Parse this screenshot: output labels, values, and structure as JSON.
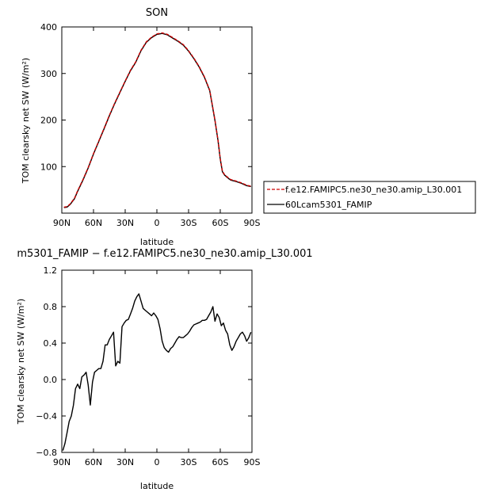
{
  "chart_data": [
    {
      "type": "line",
      "title": "SON",
      "xlabel": "latitude",
      "ylabel": "TOM clearsky net SW (W/m²)",
      "xlim": [
        90,
        -90
      ],
      "ylim": [
        0,
        400
      ],
      "x_ticks": [
        90,
        60,
        30,
        0,
        -30,
        -60,
        -90
      ],
      "x_tick_labels": [
        "90N",
        "60N",
        "30N",
        "0",
        "30S",
        "60S",
        "90S"
      ],
      "y_ticks": [
        100,
        200,
        300,
        400
      ],
      "y_tick_labels": [
        "100",
        "200",
        "300",
        "400"
      ],
      "legend_position": "right",
      "series": [
        {
          "name": "f.e12.FAMIPC5.ne30_ne30.amip_L30.001",
          "color": "#cc0000",
          "dash": "dashed",
          "x": [
            88,
            85,
            82,
            78,
            75,
            70,
            65,
            60,
            55,
            50,
            45,
            40,
            35,
            30,
            25,
            20,
            15,
            10,
            5,
            0,
            -5,
            -10,
            -15,
            -20,
            -25,
            -30,
            -35,
            -40,
            -45,
            -50,
            -55,
            -58,
            -60,
            -62,
            -64,
            -66,
            -68,
            -70,
            -75,
            -80,
            -85,
            -89
          ],
          "y": [
            13,
            14,
            20,
            32,
            48,
            72,
            98,
            128,
            155,
            182,
            210,
            236,
            260,
            284,
            307,
            325,
            350,
            368,
            378,
            385,
            387,
            384,
            377,
            370,
            362,
            349,
            333,
            315,
            293,
            264,
            200,
            155,
            117,
            90,
            83,
            79,
            75,
            72,
            69,
            65,
            60,
            58
          ]
        },
        {
          "name": "60Lcam5301_FAMIP",
          "color": "#000000",
          "dash": "solid",
          "x": [
            88,
            85,
            82,
            78,
            75,
            70,
            65,
            60,
            55,
            50,
            45,
            40,
            35,
            30,
            25,
            20,
            15,
            10,
            5,
            0,
            -5,
            -10,
            -15,
            -20,
            -25,
            -30,
            -35,
            -40,
            -45,
            -50,
            -55,
            -58,
            -60,
            -62,
            -64,
            -66,
            -68,
            -70,
            -75,
            -80,
            -85,
            -89
          ],
          "y": [
            12,
            13,
            19,
            31,
            47,
            71,
            97,
            127,
            154,
            181,
            209,
            235,
            259,
            283,
            306,
            324,
            349,
            367,
            377,
            384,
            386,
            383,
            376,
            369,
            361,
            348,
            332,
            314,
            292,
            263,
            199,
            154,
            116,
            89,
            82,
            78,
            74,
            71,
            68,
            64,
            59,
            57
          ]
        }
      ]
    },
    {
      "type": "line",
      "title": "m5301_FAMIP − f.e12.FAMIPC5.ne30_ne30.amip_L30.001",
      "xlabel": "latitude",
      "ylabel": "TOM clearsky net SW (W/m²)",
      "xlim": [
        90,
        -90
      ],
      "ylim": [
        -0.8,
        1.2
      ],
      "x_ticks": [
        90,
        60,
        30,
        0,
        -30,
        -60,
        -90
      ],
      "x_tick_labels": [
        "90N",
        "60N",
        "30N",
        "0",
        "30S",
        "60S",
        "90S"
      ],
      "y_ticks": [
        -0.8,
        -0.4,
        0.0,
        0.4,
        0.8,
        1.2
      ],
      "y_tick_labels": [
        "−0.8",
        "−0.4",
        "0.0",
        "0.4",
        "0.8",
        "1.2"
      ],
      "series": [
        {
          "color": "#000000",
          "x": [
            89,
            87,
            85,
            83,
            81,
            79,
            77,
            75,
            73,
            71,
            69,
            67,
            65,
            63,
            61,
            59,
            57,
            55,
            53,
            51,
            49,
            47,
            45,
            43,
            41,
            39,
            37,
            35,
            33,
            31,
            29,
            27,
            25,
            23,
            21,
            19,
            17,
            15,
            13,
            11,
            9,
            7,
            5,
            3,
            1,
            -1,
            -3,
            -5,
            -7,
            -9,
            -11,
            -13,
            -15,
            -17,
            -19,
            -21,
            -23,
            -25,
            -27,
            -29,
            -31,
            -33,
            -35,
            -37,
            -39,
            -41,
            -43,
            -45,
            -47,
            -49,
            -51,
            -53,
            -55,
            -57,
            -59,
            -61,
            -63,
            -65,
            -67,
            -69,
            -71,
            -73,
            -75,
            -77,
            -79,
            -81,
            -83,
            -85,
            -87,
            -89
          ],
          "y": [
            -0.78,
            -0.7,
            -0.58,
            -0.46,
            -0.4,
            -0.28,
            -0.1,
            -0.05,
            -0.1,
            0.03,
            0.05,
            0.08,
            -0.06,
            -0.28,
            -0.03,
            0.08,
            0.1,
            0.12,
            0.12,
            0.2,
            0.38,
            0.38,
            0.44,
            0.48,
            0.52,
            0.15,
            0.2,
            0.18,
            0.58,
            0.62,
            0.65,
            0.66,
            0.72,
            0.78,
            0.86,
            0.91,
            0.94,
            0.86,
            0.78,
            0.76,
            0.74,
            0.72,
            0.7,
            0.73,
            0.7,
            0.66,
            0.56,
            0.42,
            0.35,
            0.32,
            0.3,
            0.34,
            0.36,
            0.4,
            0.44,
            0.47,
            0.46,
            0.46,
            0.48,
            0.5,
            0.53,
            0.57,
            0.6,
            0.61,
            0.62,
            0.63,
            0.65,
            0.65,
            0.66,
            0.7,
            0.74,
            0.8,
            0.64,
            0.72,
            0.68,
            0.59,
            0.62,
            0.54,
            0.5,
            0.38,
            0.32,
            0.36,
            0.42,
            0.46,
            0.5,
            0.52,
            0.48,
            0.42,
            0.46,
            0.52
          ]
        }
      ]
    }
  ]
}
